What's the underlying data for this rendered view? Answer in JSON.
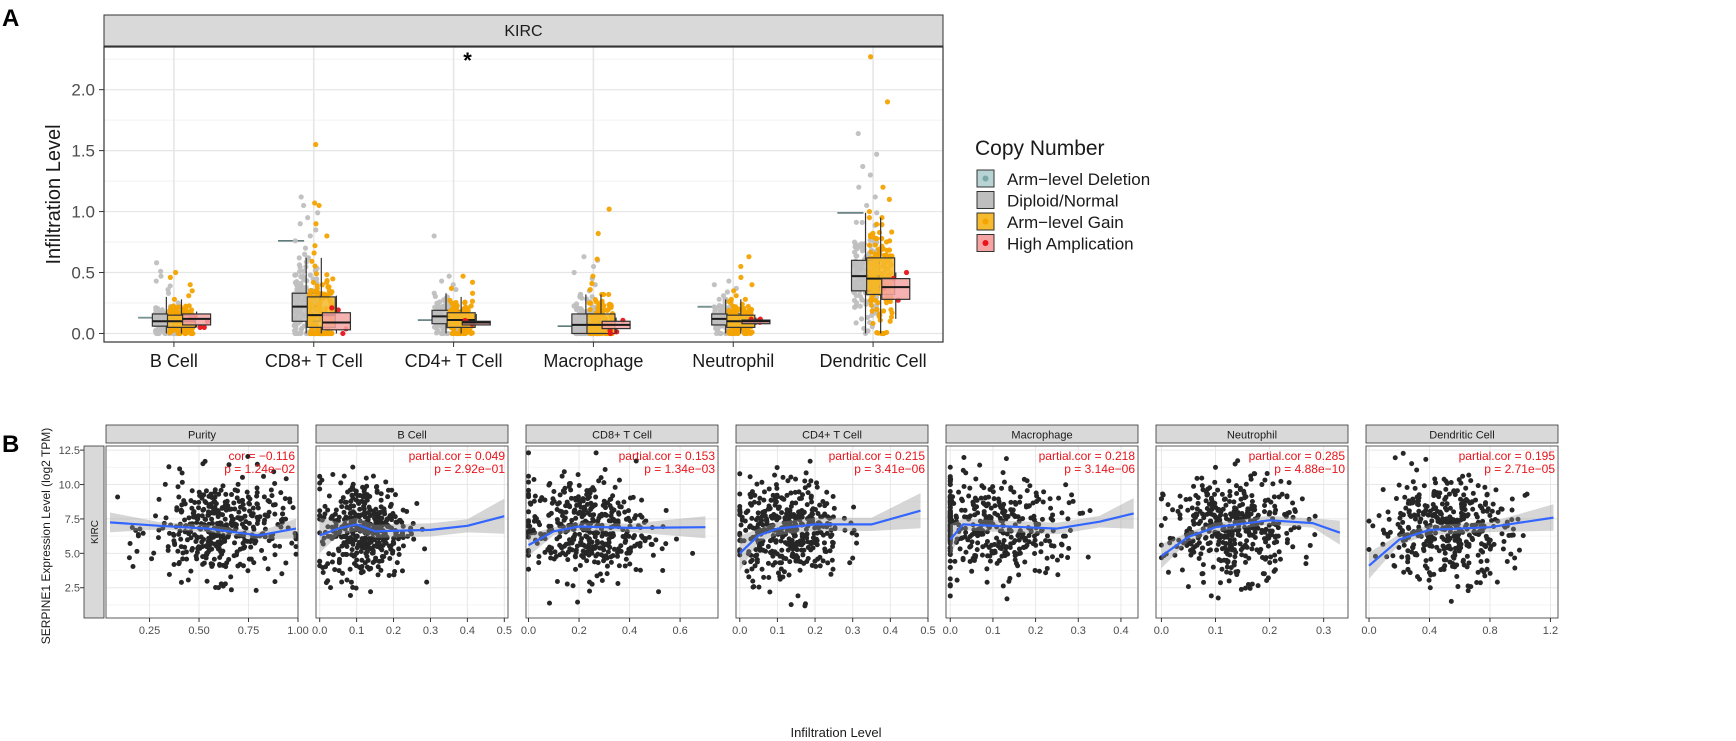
{
  "chart_data": [
    {
      "panel": "A",
      "type": "box",
      "title": "KIRC",
      "ylabel": "Infiltration Level",
      "ylim": [
        -0.07,
        2.35
      ],
      "yticks": [
        "0.0",
        "0.5",
        "1.0",
        "1.5",
        "2.0"
      ],
      "categories": [
        "B Cell",
        "CD8+ T Cell",
        "CD4+ T Cell",
        "Macrophage",
        "Neutrophil",
        "Dendritic Cell"
      ],
      "annotation": {
        "text": "*",
        "category": "CD4+ T Cell"
      },
      "legend": {
        "title": "Copy Number",
        "entries": [
          "Arm−level Deletion",
          "Diploid/Normal",
          "Arm−level Gain",
          "High Amplication"
        ]
      },
      "series": [
        {
          "name": "Arm−level Deletion",
          "fill": "#b7d3d3",
          "point": "#7aa7a7",
          "values": [
            {
              "q1": 0.13,
              "med": 0.13,
              "q3": 0.13,
              "lo": 0.13,
              "hi": 0.13,
              "n": 1,
              "outliers": []
            },
            {
              "q1": 0.76,
              "med": 0.76,
              "q3": 0.76,
              "lo": 0.76,
              "hi": 0.76,
              "n": 1,
              "outliers": []
            },
            {
              "q1": 0.11,
              "med": 0.11,
              "q3": 0.11,
              "lo": 0.11,
              "hi": 0.11,
              "n": 1,
              "outliers": []
            },
            {
              "q1": 0.06,
              "med": 0.06,
              "q3": 0.06,
              "lo": 0.06,
              "hi": 0.06,
              "n": 1,
              "outliers": []
            },
            {
              "q1": 0.22,
              "med": 0.22,
              "q3": 0.22,
              "lo": 0.22,
              "hi": 0.22,
              "n": 1,
              "outliers": []
            },
            {
              "q1": 0.99,
              "med": 0.99,
              "q3": 0.99,
              "lo": 0.99,
              "hi": 0.99,
              "n": 1,
              "outliers": []
            }
          ]
        },
        {
          "name": "Diploid/Normal",
          "fill": "#bebebe",
          "point": "#bfbfbf",
          "values": [
            {
              "q1": 0.06,
              "med": 0.1,
              "q3": 0.16,
              "lo": 0.0,
              "hi": 0.3,
              "n": 120,
              "outliers": [
                0.33,
                0.36,
                0.39,
                0.43,
                0.47,
                0.51,
                0.58
              ]
            },
            {
              "q1": 0.1,
              "med": 0.22,
              "q3": 0.33,
              "lo": 0.0,
              "hi": 0.62,
              "n": 150,
              "outliers": [
                0.65,
                0.7,
                0.76,
                0.8,
                0.85,
                0.9,
                0.95,
                0.99,
                1.05,
                1.12
              ]
            },
            {
              "q1": 0.08,
              "med": 0.14,
              "q3": 0.19,
              "lo": 0.0,
              "hi": 0.33,
              "n": 120,
              "outliers": [
                0.36,
                0.4,
                0.43,
                0.47,
                0.8
              ]
            },
            {
              "q1": 0.0,
              "med": 0.07,
              "q3": 0.16,
              "lo": 0.0,
              "hi": 0.32,
              "n": 130,
              "outliers": [
                0.35,
                0.4,
                0.45,
                0.5,
                0.55,
                0.6,
                0.63
              ]
            },
            {
              "q1": 0.07,
              "med": 0.12,
              "q3": 0.16,
              "lo": 0.0,
              "hi": 0.28,
              "n": 110,
              "outliers": [
                0.31,
                0.34,
                0.37,
                0.4,
                0.43
              ]
            },
            {
              "q1": 0.35,
              "med": 0.47,
              "q3": 0.6,
              "lo": 0.0,
              "hi": 0.99,
              "n": 150,
              "outliers": [
                1.05,
                1.12,
                1.2,
                1.3,
                1.37,
                1.47,
                1.64
              ]
            }
          ]
        },
        {
          "name": "Arm−level Gain",
          "fill": "#f5ba2e",
          "point": "#f4a300",
          "values": [
            {
              "q1": 0.05,
              "med": 0.1,
              "q3": 0.15,
              "lo": 0.0,
              "hi": 0.28,
              "n": 110,
              "outliers": [
                0.31,
                0.35,
                0.4,
                0.46,
                0.5
              ]
            },
            {
              "q1": 0.05,
              "med": 0.15,
              "q3": 0.3,
              "lo": 0.0,
              "hi": 0.62,
              "n": 120,
              "outliers": [
                0.66,
                0.72,
                0.8,
                0.9,
                1.05,
                1.07,
                1.55
              ]
            },
            {
              "q1": 0.05,
              "med": 0.11,
              "q3": 0.17,
              "lo": 0.0,
              "hi": 0.3,
              "n": 110,
              "outliers": [
                0.33,
                0.37,
                0.42,
                0.47
              ]
            },
            {
              "q1": 0.0,
              "med": 0.07,
              "q3": 0.16,
              "lo": 0.0,
              "hi": 0.32,
              "n": 110,
              "outliers": [
                0.36,
                0.41,
                0.47,
                0.61,
                0.82,
                1.02
              ]
            },
            {
              "q1": 0.05,
              "med": 0.1,
              "q3": 0.15,
              "lo": 0.0,
              "hi": 0.28,
              "n": 110,
              "outliers": [
                0.31,
                0.35,
                0.4,
                0.46,
                0.55,
                0.63
              ]
            },
            {
              "q1": 0.32,
              "med": 0.45,
              "q3": 0.62,
              "lo": 0.0,
              "hi": 0.95,
              "n": 130,
              "outliers": [
                1.0,
                1.1,
                1.2,
                1.9,
                2.27
              ]
            }
          ]
        },
        {
          "name": "High Amplication",
          "fill": "#f5a3a3",
          "point": "#e8141a",
          "values": [
            {
              "q1": 0.07,
              "med": 0.12,
              "q3": 0.16,
              "lo": 0.05,
              "hi": 0.18,
              "n": 5,
              "outliers": []
            },
            {
              "q1": 0.03,
              "med": 0.09,
              "q3": 0.17,
              "lo": 0.0,
              "hi": 0.31,
              "n": 4,
              "outliers": []
            },
            {
              "q1": 0.07,
              "med": 0.09,
              "q3": 0.1,
              "lo": 0.07,
              "hi": 0.16,
              "n": 3,
              "outliers": []
            },
            {
              "q1": 0.04,
              "med": 0.07,
              "q3": 0.1,
              "lo": 0.0,
              "hi": 0.13,
              "n": 4,
              "outliers": []
            },
            {
              "q1": 0.08,
              "med": 0.1,
              "q3": 0.11,
              "lo": 0.07,
              "hi": 0.13,
              "n": 4,
              "outliers": []
            },
            {
              "q1": 0.28,
              "med": 0.38,
              "q3": 0.45,
              "lo": 0.12,
              "hi": 0.5,
              "n": 4,
              "outliers": []
            }
          ]
        }
      ]
    },
    {
      "panel": "B",
      "type": "scatter",
      "ylabel": "SERPINE1 Expression Level (log2 TPM)",
      "xlabel": "Infiltration Level",
      "row_strip": "KIRC",
      "ylim": [
        0.3,
        12.8
      ],
      "yticks": [
        "2.5",
        "5.0",
        "7.5",
        "10.0",
        "12.5"
      ],
      "panels": [
        {
          "title": "Purity",
          "cor_line": "cor = −0.116",
          "p_line": "p = 1.24e−02",
          "xlim": [
            0.03,
            1.0
          ],
          "xtick_values": [
            0.25,
            0.5,
            0.75,
            1.0
          ],
          "xtick_labels": [
            "0.25",
            "0.50",
            "0.75",
            "1.00"
          ],
          "x_mean": 0.6,
          "x_sd": 0.17,
          "x_clip": [
            0.05,
            0.99
          ],
          "fit": [
            [
              0.05,
              7.25
            ],
            [
              0.3,
              7.0
            ],
            [
              0.55,
              6.8
            ],
            [
              0.8,
              6.3
            ],
            [
              0.99,
              6.8
            ]
          ],
          "band": 0.45
        },
        {
          "title": "B Cell",
          "cor_line": "partial.cor = 0.049",
          "p_line": "p = 2.92e−01",
          "xlim": [
            -0.01,
            0.51
          ],
          "xtick_values": [
            0.0,
            0.1,
            0.2,
            0.3,
            0.4,
            0.5
          ],
          "xtick_labels": [
            "0.0",
            "0.1",
            "0.2",
            "0.3",
            "0.4",
            "0.5"
          ],
          "x_mean": 0.12,
          "x_sd": 0.06,
          "x_clip": [
            0.0,
            0.5
          ],
          "fit": [
            [
              0.0,
              6.3
            ],
            [
              0.05,
              6.8
            ],
            [
              0.1,
              7.1
            ],
            [
              0.15,
              6.6
            ],
            [
              0.3,
              6.7
            ],
            [
              0.4,
              7.0
            ],
            [
              0.5,
              7.7
            ]
          ],
          "band": 0.8
        },
        {
          "title": "CD8+ T Cell",
          "cor_line": "partial.cor = 0.153",
          "p_line": "p = 1.34e−03",
          "xlim": [
            -0.01,
            0.75
          ],
          "xtick_values": [
            0.0,
            0.2,
            0.4,
            0.6
          ],
          "xtick_labels": [
            "0.0",
            "0.2",
            "0.4",
            "0.6"
          ],
          "x_mean": 0.22,
          "x_sd": 0.13,
          "x_clip": [
            0.0,
            0.72
          ],
          "fit": [
            [
              0.0,
              5.6
            ],
            [
              0.1,
              6.6
            ],
            [
              0.2,
              6.95
            ],
            [
              0.4,
              6.85
            ],
            [
              0.7,
              6.9
            ]
          ],
          "band": 0.5
        },
        {
          "title": "CD4+ T Cell",
          "cor_line": "partial.cor = 0.215",
          "p_line": "p = 3.41e−06",
          "xlim": [
            -0.01,
            0.5
          ],
          "xtick_values": [
            0.0,
            0.1,
            0.2,
            0.3,
            0.4,
            0.5
          ],
          "xtick_labels": [
            "0.0",
            "0.1",
            "0.2",
            "0.3",
            "0.4",
            "0.5"
          ],
          "x_mean": 0.13,
          "x_sd": 0.07,
          "x_clip": [
            0.0,
            0.48
          ],
          "fit": [
            [
              0.0,
              5.0
            ],
            [
              0.05,
              6.3
            ],
            [
              0.1,
              6.8
            ],
            [
              0.2,
              7.1
            ],
            [
              0.35,
              7.1
            ],
            [
              0.48,
              8.1
            ]
          ],
          "band": 0.8
        },
        {
          "title": "Macrophage",
          "cor_line": "partial.cor = 0.218",
          "p_line": "p = 3.14e−06",
          "xlim": [
            -0.01,
            0.44
          ],
          "xtick_values": [
            0.0,
            0.1,
            0.2,
            0.3,
            0.4
          ],
          "xtick_labels": [
            "0.0",
            "0.1",
            "0.2",
            "0.3",
            "0.4"
          ],
          "x_mean": 0.1,
          "x_sd": 0.09,
          "x_clip": [
            0.0,
            0.43
          ],
          "fit": [
            [
              0.0,
              6.0
            ],
            [
              0.03,
              7.1
            ],
            [
              0.1,
              7.0
            ],
            [
              0.25,
              6.8
            ],
            [
              0.35,
              7.3
            ],
            [
              0.43,
              7.9
            ]
          ],
          "band": 0.7
        },
        {
          "title": "Neutrophil",
          "cor_line": "partial.cor = 0.285",
          "p_line": "p = 4.88e−10",
          "xlim": [
            -0.01,
            0.345
          ],
          "xtick_values": [
            0.0,
            0.1,
            0.2,
            0.3
          ],
          "xtick_labels": [
            "0.0",
            "0.1",
            "0.2",
            "0.3"
          ],
          "x_mean": 0.13,
          "x_sd": 0.06,
          "x_clip": [
            0.0,
            0.34
          ],
          "fit": [
            [
              0.0,
              4.8
            ],
            [
              0.05,
              6.2
            ],
            [
              0.1,
              6.9
            ],
            [
              0.2,
              7.4
            ],
            [
              0.28,
              7.2
            ],
            [
              0.33,
              6.5
            ]
          ],
          "band": 0.55
        },
        {
          "title": "Dendritic Cell",
          "cor_line": "partial.cor = 0.195",
          "p_line": "p = 2.71e−05",
          "xlim": [
            -0.02,
            1.25
          ],
          "xtick_values": [
            0.0,
            0.4,
            0.8,
            1.2
          ],
          "xtick_labels": [
            "0.0",
            "0.4",
            "0.8",
            "1.2"
          ],
          "x_mean": 0.5,
          "x_sd": 0.22,
          "x_clip": [
            0.0,
            1.22
          ],
          "fit": [
            [
              0.0,
              4.1
            ],
            [
              0.2,
              6.0
            ],
            [
              0.4,
              6.7
            ],
            [
              0.8,
              6.9
            ],
            [
              1.22,
              7.6
            ]
          ],
          "band": 0.6
        }
      ]
    }
  ],
  "panel_labels": {
    "a": "A",
    "b": "B"
  }
}
